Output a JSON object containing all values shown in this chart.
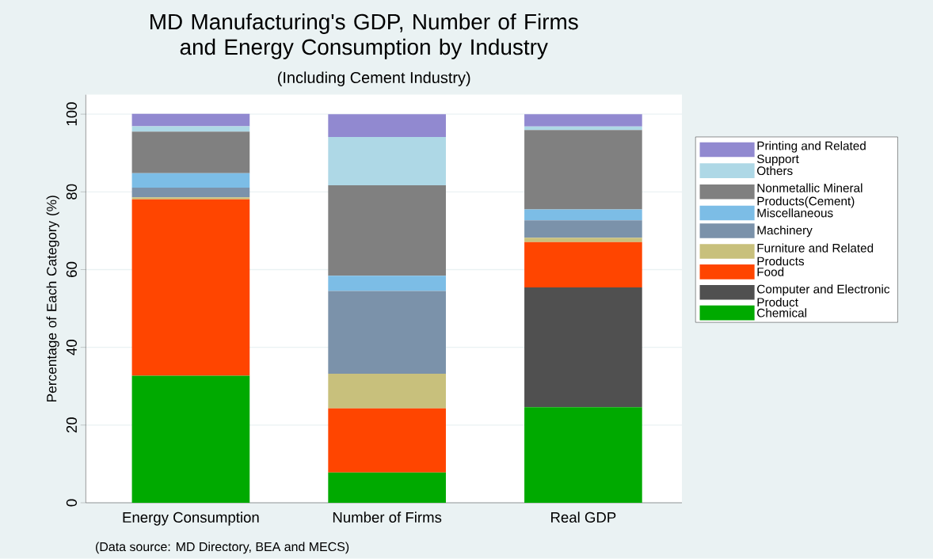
{
  "chart_data": {
    "type": "bar",
    "stacked": true,
    "title": "MD Manufacturing's GDP, Number of Firms and Energy Consumption by Industry",
    "subtitle": "(Including Cement Industry)",
    "ylabel": "Percentage of Each Category (%)",
    "annotations": [
      "(Data source: MD Directory, BEA and MECS)"
    ],
    "categories": [
      "Energy Consumption",
      "Number of Firms",
      "Real GDP"
    ],
    "ylim": [
      0,
      105
    ],
    "yticks": [
      0,
      20,
      40,
      60,
      80,
      100
    ],
    "grid": "y",
    "legend": "right",
    "series": [
      {
        "name": "Chemical",
        "color": "#00aa00",
        "values": [
          32.7,
          7.8,
          24.6
        ]
      },
      {
        "name": "Computer and Electronic Product",
        "color": "#505050",
        "values": [
          0,
          0,
          30.8
        ]
      },
      {
        "name": "Food",
        "color": "#ff4500",
        "values": [
          45.4,
          16.5,
          11.7
        ]
      },
      {
        "name": "Furniture and Related Products",
        "color": "#c8c07c",
        "values": [
          0.5,
          8.9,
          1.1
        ]
      },
      {
        "name": "Machinery",
        "color": "#7b92aa",
        "values": [
          2.5,
          21.3,
          4.5
        ]
      },
      {
        "name": "Miscellaneous",
        "color": "#7cbde6",
        "values": [
          3.7,
          3.9,
          2.8
        ]
      },
      {
        "name": "Nonmetallic Mineral Products(Cement)",
        "color": "#808080",
        "values": [
          10.7,
          23.3,
          20.4
        ]
      },
      {
        "name": "Others",
        "color": "#aed8e6",
        "values": [
          1.4,
          12.4,
          0.9
        ]
      },
      {
        "name": "Printing and Related Support",
        "color": "#9189d0",
        "values": [
          3.2,
          5.9,
          3.2
        ]
      }
    ]
  }
}
